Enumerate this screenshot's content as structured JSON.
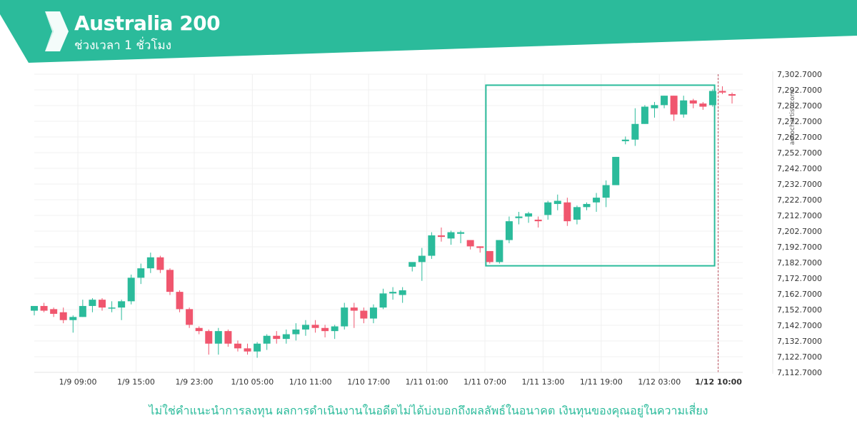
{
  "header": {
    "title": "Australia 200",
    "subtitle": "ช่วงเวลา 1 ชั่วโมง",
    "brand_color": "#2bbb9b",
    "logo_icon": "autochartist-chevron-logo"
  },
  "watermark": "autochartist.com",
  "disclaimer": "ไม่ใช่คำแนะนำการลงทุน ผลการดำเนินงานในอดีตไม่ได้บ่งบอกถึงผลลัพธ์ในอนาคต เงินทุนของคุณอยู่ในความเสี่ยง",
  "chart_data": {
    "type": "candlestick",
    "title": "Australia 200",
    "ylim": [
      7112.7,
      7302.7
    ],
    "y_ticks": [
      "7,302.7000",
      "7,292.7000",
      "7,282.7000",
      "7,272.7000",
      "7,262.7000",
      "7,252.7000",
      "7,242.7000",
      "7,232.7000",
      "7,222.7000",
      "7,212.7000",
      "7,202.7000",
      "7,192.7000",
      "7,182.7000",
      "7,172.7000",
      "7,162.7000",
      "7,152.7000",
      "7,142.7000",
      "7,132.7000",
      "7,122.7000",
      "7,112.7000"
    ],
    "x_ticks": [
      {
        "label": "1/9 09:00",
        "index": 4.5
      },
      {
        "label": "1/9 15:00",
        "index": 10.5
      },
      {
        "label": "1/9 23:00",
        "index": 16.5
      },
      {
        "label": "1/10 05:00",
        "index": 22.5
      },
      {
        "label": "1/10 11:00",
        "index": 28.5
      },
      {
        "label": "1/10 17:00",
        "index": 34.5
      },
      {
        "label": "1/11 01:00",
        "index": 40.5
      },
      {
        "label": "1/11 07:00",
        "index": 46.5
      },
      {
        "label": "1/11 13:00",
        "index": 52.5
      },
      {
        "label": "1/11 19:00",
        "index": 58.5
      },
      {
        "label": "1/12 03:00",
        "index": 64.5
      },
      {
        "label": "1/12 10:00",
        "index": 70.6,
        "highlight": true
      }
    ],
    "up_color": "#2bbb9b",
    "down_color": "#f0566e",
    "pattern_box": {
      "start_index": 46.6,
      "end_index": 70.2,
      "top": 7295.7,
      "bottom": 7180.6
    },
    "candles": [
      [
        7152,
        7155,
        7149,
        7155
      ],
      [
        7155,
        7157,
        7151,
        7152
      ],
      [
        7153,
        7154,
        7148,
        7150
      ],
      [
        7151,
        7154,
        7144,
        7146
      ],
      [
        7146,
        7149,
        7138,
        7148
      ],
      [
        7148,
        7159,
        7148,
        7155
      ],
      [
        7155,
        7160,
        7151,
        7159
      ],
      [
        7159,
        7160,
        7152,
        7154
      ],
      [
        7154,
        7158,
        7151,
        7154
      ],
      [
        7154,
        7159,
        7146,
        7158
      ],
      [
        7158,
        7175,
        7156,
        7173
      ],
      [
        7173,
        7182,
        7169,
        7179
      ],
      [
        7179,
        7189,
        7176,
        7186
      ],
      [
        7186,
        7187,
        7176,
        7178
      ],
      [
        7178,
        7179,
        7162,
        7164
      ],
      [
        7164,
        7165,
        7151,
        7153
      ],
      [
        7153,
        7154,
        7141,
        7143
      ],
      [
        7141,
        7142,
        7137,
        7139
      ],
      [
        7139,
        7140,
        7124,
        7131
      ],
      [
        7131,
        7141,
        7124,
        7139
      ],
      [
        7139,
        7140,
        7129,
        7131
      ],
      [
        7131,
        7133,
        7126,
        7128
      ],
      [
        7128,
        7131,
        7124,
        7126
      ],
      [
        7126,
        7132,
        7122,
        7131
      ],
      [
        7131,
        7137,
        7127,
        7136
      ],
      [
        7136,
        7139,
        7131,
        7134
      ],
      [
        7134,
        7140,
        7131,
        7137
      ],
      [
        7137,
        7144,
        7133,
        7140
      ],
      [
        7140,
        7146,
        7136,
        7143
      ],
      [
        7143,
        7146,
        7138,
        7141
      ],
      [
        7141,
        7143,
        7135,
        7139
      ],
      [
        7139,
        7143,
        7134,
        7142
      ],
      [
        7142,
        7157,
        7140,
        7154
      ],
      [
        7154,
        7157,
        7141,
        7152
      ],
      [
        7152,
        7154,
        7144,
        7147
      ],
      [
        7147,
        7156,
        7144,
        7154
      ],
      [
        7154,
        7166,
        7153,
        7163
      ],
      [
        7163,
        7167,
        7159,
        7164
      ],
      [
        7162,
        7167,
        7157,
        7165
      ],
      [
        7180,
        7182,
        7177,
        7183
      ],
      [
        7183,
        7192,
        7171,
        7187
      ],
      [
        7187,
        7202,
        7185,
        7200
      ],
      [
        7200,
        7205,
        7196,
        7199
      ],
      [
        7198,
        7203,
        7194,
        7202
      ],
      [
        7201,
        7203,
        7195,
        7202
      ],
      [
        7197,
        7197,
        7191,
        7193
      ],
      [
        7193,
        7193,
        7189,
        7192
      ],
      [
        7190,
        7190,
        7182,
        7183
      ],
      [
        7183,
        7197,
        7182,
        7197
      ],
      [
        7197,
        7212,
        7195,
        7209
      ],
      [
        7211,
        7215,
        7207,
        7212
      ],
      [
        7212,
        7215,
        7208,
        7214
      ],
      [
        7210,
        7212,
        7205,
        7209
      ],
      [
        7213,
        7222,
        7210,
        7221
      ],
      [
        7220,
        7226,
        7216,
        7222
      ],
      [
        7221,
        7224,
        7206,
        7209
      ],
      [
        7210,
        7219,
        7207,
        7218
      ],
      [
        7218,
        7221,
        7216,
        7220
      ],
      [
        7221,
        7227,
        7215,
        7224
      ],
      [
        7224,
        7235,
        7218,
        7232
      ],
      [
        7232,
        7250,
        7232,
        7250
      ],
      [
        7260,
        7263,
        7258,
        7261
      ],
      [
        7261,
        7281,
        7257,
        7271
      ],
      [
        7271,
        7283,
        7271,
        7282
      ],
      [
        7281,
        7285,
        7275,
        7283
      ],
      [
        7283,
        7289,
        7281,
        7289
      ],
      [
        7289,
        7289,
        7273,
        7277
      ],
      [
        7277,
        7289,
        7275,
        7286
      ],
      [
        7286,
        7287,
        7281,
        7284
      ],
      [
        7284,
        7285,
        7280,
        7282
      ],
      [
        7283,
        7293,
        7282,
        7292
      ],
      [
        7292,
        7295,
        7290,
        7291
      ],
      [
        7290,
        7291,
        7284,
        7289
      ]
    ]
  }
}
